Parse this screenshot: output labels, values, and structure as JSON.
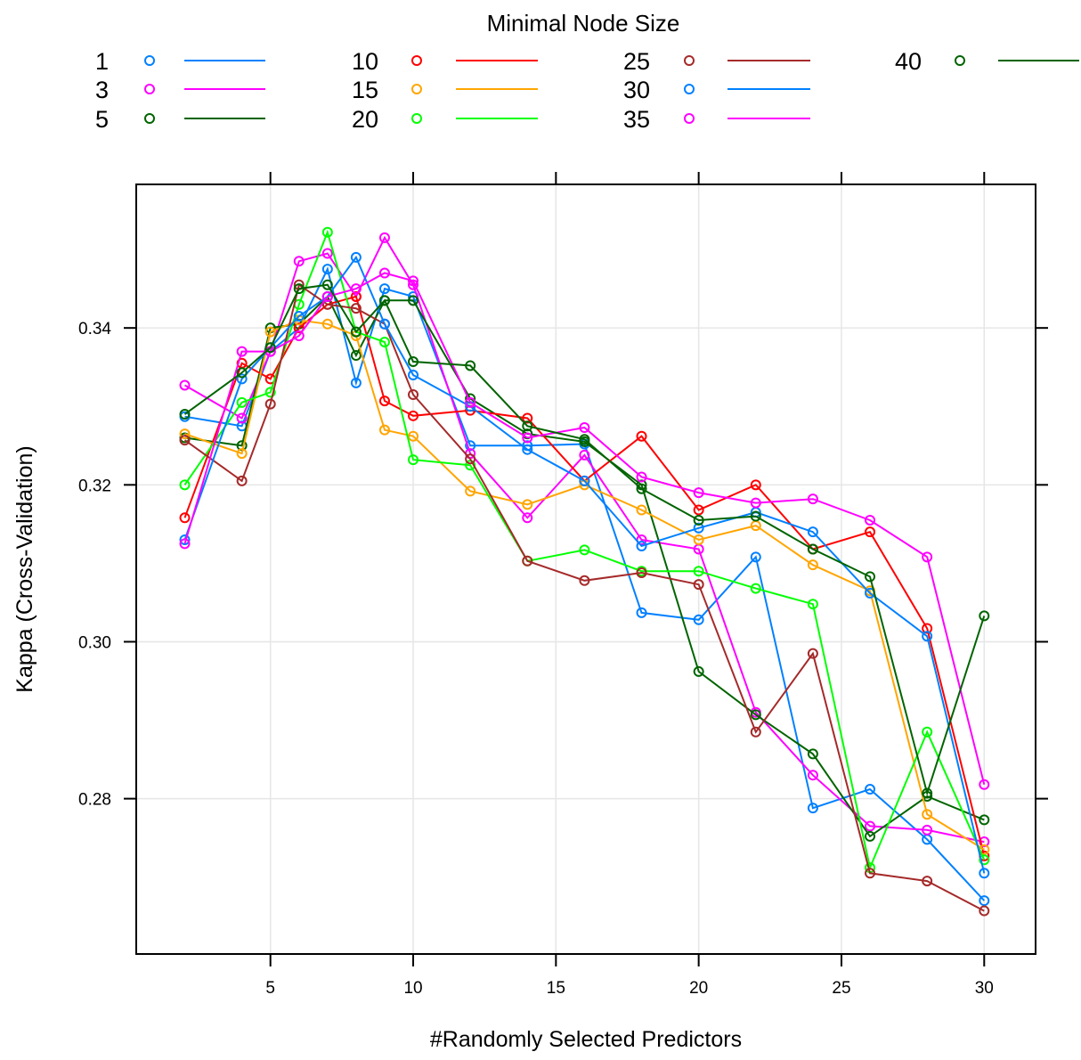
{
  "chart_data": {
    "type": "line",
    "title": "",
    "xlabel": "#Randomly Selected Predictors",
    "ylabel": "Kappa (Cross-Validation)",
    "legend_title": "Minimal Node Size",
    "legend_position": "top",
    "grid": true,
    "xlim": [
      0.3,
      31.8
    ],
    "ylim": [
      0.2602,
      0.3583
    ],
    "x_ticks": [
      5,
      10,
      15,
      20,
      25,
      30
    ],
    "y_ticks": [
      0.28,
      0.3,
      0.32,
      0.34
    ],
    "x_tick_labels": [
      "5",
      "10",
      "15",
      "20",
      "25",
      "30"
    ],
    "y_tick_labels": [
      "0.28",
      "0.30",
      "0.32",
      "0.34"
    ],
    "x": [
      2,
      4,
      5,
      6,
      7,
      8,
      9,
      10,
      12,
      14,
      16,
      18,
      20,
      22,
      24,
      26,
      28,
      30
    ],
    "series": [
      {
        "name": "1",
        "color": "#0080ff",
        "values": [
          0.3287,
          0.3275,
          0.337,
          0.34,
          0.3475,
          0.333,
          0.345,
          0.344,
          0.325,
          0.325,
          0.3252,
          0.3037,
          0.3028,
          0.3108,
          0.2788,
          0.2812,
          0.2748,
          0.267
        ]
      },
      {
        "name": "3",
        "color": "#ff00ff",
        "values": [
          0.3327,
          0.3285,
          0.337,
          0.3485,
          0.3495,
          0.344,
          0.3515,
          0.3455,
          0.324,
          0.3158,
          0.3238,
          0.313,
          0.3118,
          0.291,
          0.283,
          0.2765,
          0.276,
          0.2745
        ]
      },
      {
        "name": "5",
        "color": "#006400",
        "values": [
          0.326,
          0.325,
          0.34,
          0.3405,
          0.344,
          0.3365,
          0.3435,
          0.3435,
          0.331,
          0.3265,
          0.3255,
          0.32,
          0.2962,
          0.2907,
          0.2857,
          0.2752,
          0.2803,
          0.2773
        ]
      },
      {
        "name": "10",
        "color": "#ff0000",
        "values": [
          0.3158,
          0.3355,
          0.3335,
          0.34,
          0.343,
          0.344,
          0.3307,
          0.3288,
          0.3295,
          0.3285,
          0.3205,
          0.3262,
          0.3168,
          0.32,
          0.3118,
          0.314,
          0.3017,
          0.2727
        ]
      },
      {
        "name": "15",
        "color": "#ffa500",
        "values": [
          0.3265,
          0.324,
          0.3395,
          0.341,
          0.3405,
          0.339,
          0.327,
          0.3262,
          0.3192,
          0.3175,
          0.32,
          0.3168,
          0.313,
          0.3148,
          0.3098,
          0.3065,
          0.278,
          0.2735
        ]
      },
      {
        "name": "20",
        "color": "#00ff00",
        "values": [
          0.32,
          0.3305,
          0.3318,
          0.343,
          0.3522,
          0.3395,
          0.3382,
          0.3232,
          0.3225,
          0.3103,
          0.3117,
          0.309,
          0.309,
          0.3068,
          0.3048,
          0.2712,
          0.2885,
          0.2722
        ]
      },
      {
        "name": "25",
        "color": "#a52a2a",
        "values": [
          0.3257,
          0.3205,
          0.3303,
          0.3455,
          0.343,
          0.3425,
          0.3405,
          0.3315,
          0.3233,
          0.3103,
          0.3078,
          0.3088,
          0.3073,
          0.2885,
          0.2985,
          0.2705,
          0.2695,
          0.2657
        ]
      },
      {
        "name": "30",
        "color": "#0080ff",
        "values": [
          0.313,
          0.3335,
          0.3375,
          0.3415,
          0.344,
          0.349,
          0.3405,
          0.334,
          0.33,
          0.3245,
          0.3205,
          0.3122,
          0.3145,
          0.3165,
          0.314,
          0.3062,
          0.3007,
          0.2705
        ]
      },
      {
        "name": "35",
        "color": "#ff00ff",
        "values": [
          0.3125,
          0.337,
          0.337,
          0.339,
          0.344,
          0.345,
          0.347,
          0.346,
          0.3305,
          0.326,
          0.3273,
          0.321,
          0.319,
          0.3177,
          0.3182,
          0.3155,
          0.3108,
          0.2818
        ]
      },
      {
        "name": "40",
        "color": "#006400",
        "values": [
          0.329,
          0.3343,
          0.3375,
          0.345,
          0.3455,
          0.3395,
          0.3435,
          0.3357,
          0.3352,
          0.3275,
          0.3258,
          0.3195,
          0.3155,
          0.316,
          0.3118,
          0.3083,
          0.2807,
          0.3033
        ]
      }
    ]
  }
}
